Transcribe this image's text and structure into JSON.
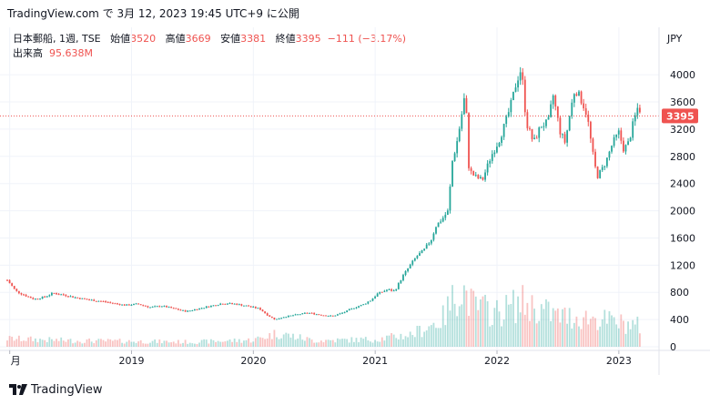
{
  "header": {
    "text": "TradingView.com で 3月 12, 2023 19:45 UTC+9 に公開"
  },
  "legend": {
    "symbol": "日本郵船, 1週, TSE",
    "open_label": "始値",
    "open": "3520",
    "high_label": "高値",
    "high": "3669",
    "low_label": "安値",
    "low": "3381",
    "close_label": "終値",
    "close": "3395",
    "change": "−111 (−3.17%)",
    "volume_label": "出来高",
    "volume": "95.638M"
  },
  "footer": {
    "brand": "TradingView"
  },
  "colors": {
    "up": "#26a69a",
    "down": "#ef5350",
    "grid": "#f0f3fa",
    "text": "#131722"
  },
  "chart_data": {
    "type": "candlestick",
    "currency_label": "JPY",
    "y_ticks": [
      0,
      400,
      800,
      1200,
      1600,
      2000,
      2400,
      2800,
      3200,
      3600,
      4000
    ],
    "ylim": [
      0,
      4350
    ],
    "x_labels": [
      "月",
      "2019",
      "2020",
      "2021",
      "2022",
      "2023"
    ],
    "x_label_dates": [
      2018.0,
      2019.0,
      2020.0,
      2021.0,
      2022.0,
      2023.0
    ],
    "xlim": [
      2017.98,
      2023.3
    ],
    "last_price": "3395",
    "last_price_value": 3395,
    "price_path": [
      [
        2017.98,
        980
      ],
      [
        2018.05,
        820
      ],
      [
        2018.12,
        760
      ],
      [
        2018.2,
        700
      ],
      [
        2018.28,
        730
      ],
      [
        2018.36,
        790
      ],
      [
        2018.45,
        760
      ],
      [
        2018.55,
        720
      ],
      [
        2018.65,
        690
      ],
      [
        2018.75,
        670
      ],
      [
        2018.85,
        640
      ],
      [
        2018.95,
        610
      ],
      [
        2019.05,
        630
      ],
      [
        2019.15,
        580
      ],
      [
        2019.25,
        600
      ],
      [
        2019.35,
        560
      ],
      [
        2019.45,
        520
      ],
      [
        2019.55,
        560
      ],
      [
        2019.65,
        600
      ],
      [
        2019.75,
        640
      ],
      [
        2019.85,
        630
      ],
      [
        2019.95,
        600
      ],
      [
        2020.05,
        560
      ],
      [
        2020.12,
        460
      ],
      [
        2020.18,
        400
      ],
      [
        2020.25,
        440
      ],
      [
        2020.35,
        470
      ],
      [
        2020.45,
        500
      ],
      [
        2020.55,
        470
      ],
      [
        2020.65,
        450
      ],
      [
        2020.75,
        510
      ],
      [
        2020.82,
        570
      ],
      [
        2020.9,
        620
      ],
      [
        2020.96,
        680
      ],
      [
        2021.02,
        780
      ],
      [
        2021.1,
        840
      ],
      [
        2021.16,
        820
      ],
      [
        2021.22,
        1020
      ],
      [
        2021.28,
        1180
      ],
      [
        2021.34,
        1330
      ],
      [
        2021.4,
        1420
      ],
      [
        2021.46,
        1580
      ],
      [
        2021.5,
        1780
      ],
      [
        2021.55,
        1880
      ],
      [
        2021.6,
        2000
      ],
      [
        2021.63,
        2700
      ],
      [
        2021.67,
        3000
      ],
      [
        2021.7,
        3300
      ],
      [
        2021.74,
        3750
      ],
      [
        2021.77,
        2600
      ],
      [
        2021.82,
        2500
      ],
      [
        2021.88,
        2450
      ],
      [
        2021.95,
        2800
      ],
      [
        2022.02,
        3050
      ],
      [
        2022.08,
        3350
      ],
      [
        2022.12,
        3600
      ],
      [
        2022.16,
        3900
      ],
      [
        2022.2,
        4100
      ],
      [
        2022.24,
        3300
      ],
      [
        2022.3,
        3000
      ],
      [
        2022.36,
        3250
      ],
      [
        2022.42,
        3300
      ],
      [
        2022.46,
        3700
      ],
      [
        2022.52,
        3150
      ],
      [
        2022.56,
        3000
      ],
      [
        2022.6,
        3450
      ],
      [
        2022.64,
        3800
      ],
      [
        2022.7,
        3600
      ],
      [
        2022.74,
        3400
      ],
      [
        2022.78,
        2900
      ],
      [
        2022.82,
        2500
      ],
      [
        2022.86,
        2600
      ],
      [
        2022.9,
        2750
      ],
      [
        2022.95,
        3000
      ],
      [
        2023.0,
        3150
      ],
      [
        2023.04,
        2900
      ],
      [
        2023.08,
        3000
      ],
      [
        2023.12,
        3300
      ],
      [
        2023.16,
        3550
      ],
      [
        2023.19,
        3395
      ]
    ],
    "volume_path": [
      [
        2017.98,
        120
      ],
      [
        2018.5,
        90
      ],
      [
        2019.0,
        80
      ],
      [
        2019.5,
        70
      ],
      [
        2020.0,
        100
      ],
      [
        2020.2,
        200
      ],
      [
        2020.5,
        90
      ],
      [
        2021.0,
        110
      ],
      [
        2021.3,
        180
      ],
      [
        2021.55,
        400
      ],
      [
        2021.7,
        900
      ],
      [
        2021.8,
        600
      ],
      [
        2022.0,
        500
      ],
      [
        2022.2,
        650
      ],
      [
        2022.5,
        450
      ],
      [
        2022.8,
        420
      ],
      [
        2023.0,
        350
      ],
      [
        2023.19,
        300
      ]
    ],
    "volume_ylim": [
      0,
      4350
    ]
  }
}
